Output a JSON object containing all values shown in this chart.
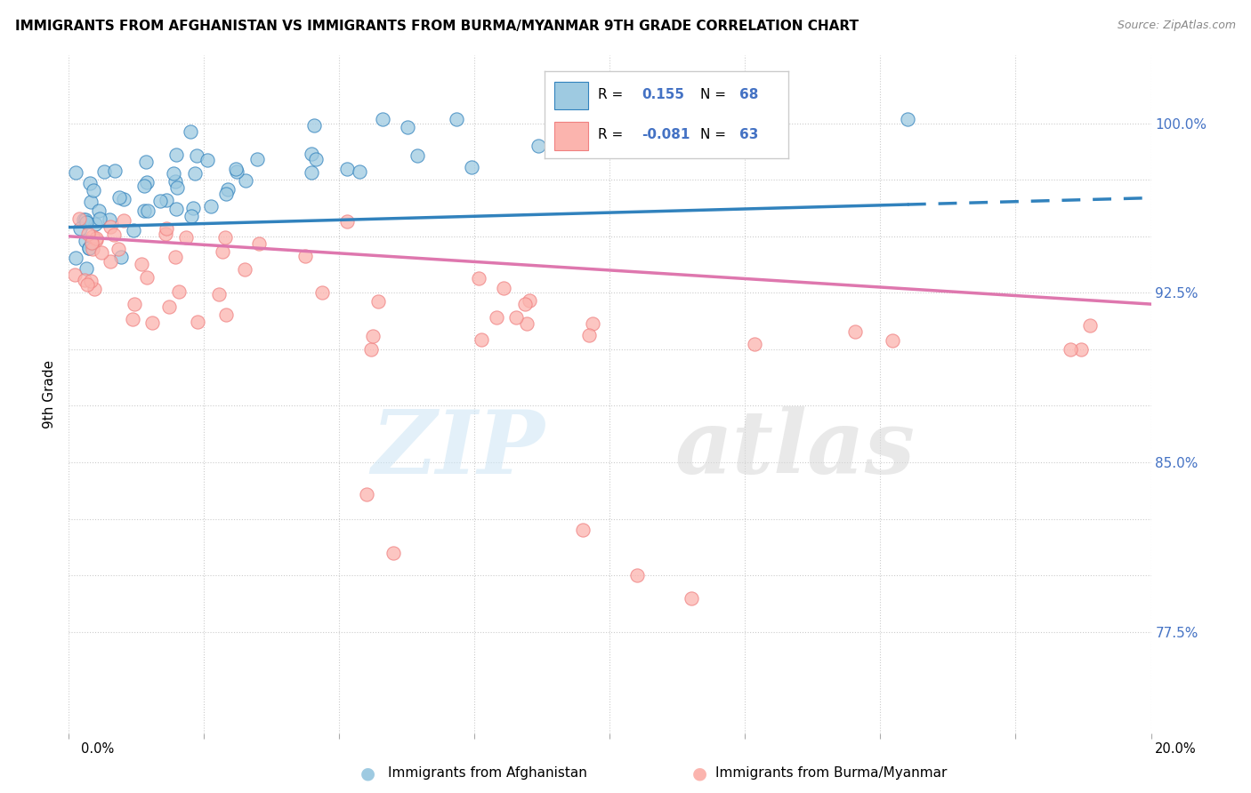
{
  "title": "IMMIGRANTS FROM AFGHANISTAN VS IMMIGRANTS FROM BURMA/MYANMAR 9TH GRADE CORRELATION CHART",
  "source": "Source: ZipAtlas.com",
  "ylabel": "9th Grade",
  "xmin": 0.0,
  "xmax": 0.2,
  "ymin": 0.73,
  "ymax": 1.03,
  "r_afghanistan": 0.155,
  "n_afghanistan": 68,
  "r_burma": -0.081,
  "n_burma": 63,
  "color_afghanistan": "#9ecae1",
  "color_burma": "#fbb4ae",
  "line_color_afghanistan": "#3182bd",
  "line_color_burma": "#de77ae",
  "ytick_positions": [
    0.775,
    0.8,
    0.825,
    0.85,
    0.875,
    0.9,
    0.925,
    0.95,
    0.975,
    1.0
  ],
  "ytick_labels": [
    "77.5%",
    "",
    "",
    "85.0%",
    "",
    "",
    "92.5%",
    "",
    "",
    "100.0%"
  ],
  "bottom_legend_afghanistan": "Immigrants from Afghanistan",
  "bottom_legend_burma": "Immigrants from Burma/Myanmar",
  "watermark_zip": "ZIP",
  "watermark_atlas": "atlas"
}
